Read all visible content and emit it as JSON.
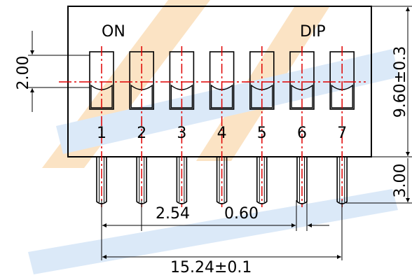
{
  "drawing": {
    "top_left_label": "ON",
    "top_right_label": "DIP",
    "switch_numbers": [
      "1",
      "2",
      "3",
      "4",
      "5",
      "6",
      "7"
    ],
    "colors": {
      "outline": "#000000",
      "centerline": "#e00000",
      "watermark_orange": "#fbe3c4",
      "watermark_blue": "#dbe9f8"
    }
  },
  "dimensions": {
    "switch_height": "2.00",
    "body_height": "9.60±0.3",
    "pin_length": "3.00",
    "pitch": "2.54",
    "pin_width": "0.60",
    "total_span": "15.24±0.1"
  }
}
